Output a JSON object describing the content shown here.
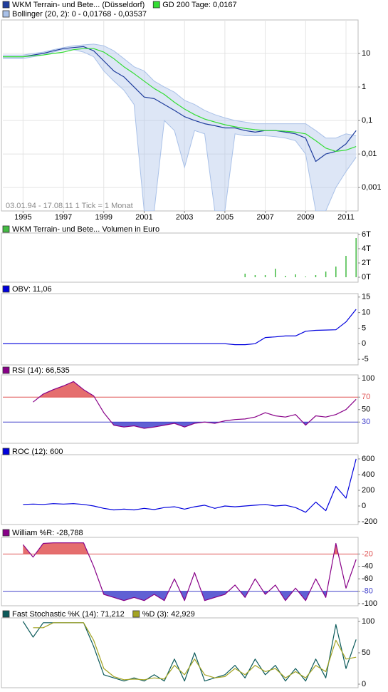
{
  "chart_data": [
    {
      "type": "line",
      "log": true,
      "grid": true,
      "annotation": "03.01.94 - 17.08.11   1 Tick = 1 Monat",
      "x": [
        1994,
        1994.5,
        1995,
        1995.5,
        1996,
        1996.5,
        1997,
        1997.5,
        1998,
        1998.5,
        1999,
        1999.5,
        2000,
        2000.5,
        2001,
        2001.5,
        2002,
        2002.5,
        2003,
        2003.5,
        2004,
        2004.5,
        2005,
        2005.5,
        2006,
        2006.5,
        2007,
        2007.5,
        2008,
        2008.5,
        2009,
        2009.5,
        2010,
        2010.5,
        2011,
        2011.5
      ],
      "xlim": [
        1994,
        2011.6
      ],
      "xticks": [
        1995,
        1997,
        1999,
        2001,
        2003,
        2005,
        2007,
        2009,
        2011
      ],
      "ylim": [
        0.0002,
        100
      ],
      "yticks": [
        10,
        1,
        {
          "value": 0.1,
          "label": "0,1"
        },
        {
          "value": 0.01,
          "label": "0,01"
        },
        {
          "value": 0.001,
          "label": "0,001"
        }
      ],
      "series": [
        {
          "name": "WKM Terrain- und Bete... (Düsseldorf)",
          "color": "#1f3d9c",
          "values": [
            8,
            8,
            8,
            9,
            10,
            12,
            14,
            15,
            16,
            12,
            6,
            3,
            2,
            1,
            0.5,
            0.45,
            0.3,
            0.2,
            0.13,
            0.1,
            0.08,
            0.07,
            0.06,
            0.06,
            0.05,
            0.045,
            0.05,
            0.05,
            0.045,
            0.04,
            0.03,
            0.006,
            0.01,
            0.012,
            0.02,
            0.05
          ]
        },
        {
          "name": "GD 200 Tage: 0,0167",
          "color": "#33dd33",
          "values": [
            8,
            8,
            8,
            8.5,
            9,
            10,
            11,
            13,
            14,
            14,
            11,
            7,
            4,
            2.5,
            1.5,
            0.9,
            0.6,
            0.35,
            0.22,
            0.15,
            0.11,
            0.09,
            0.075,
            0.065,
            0.058,
            0.053,
            0.05,
            0.05,
            0.048,
            0.045,
            0.04,
            0.025,
            0.015,
            0.012,
            0.013,
            0.0167
          ]
        }
      ],
      "band": {
        "name": "Bollinger (20, 2): 0 - 0,01768 - 0,03537",
        "color": "#a9c1e8",
        "upper": [
          9,
          9,
          9,
          10,
          11,
          13,
          15,
          17,
          18,
          19,
          17,
          12,
          7,
          4,
          3,
          1.5,
          1,
          0.7,
          0.4,
          0.3,
          0.2,
          0.15,
          0.12,
          0.1,
          0.09,
          0.08,
          0.08,
          0.08,
          0.08,
          0.08,
          0.08,
          0.05,
          0.03,
          0.03,
          0.04,
          0.035
        ],
        "lower": [
          7,
          7,
          7,
          8,
          9,
          11,
          13,
          13,
          11,
          8,
          3,
          1.5,
          0.8,
          0.3,
          0.0002,
          0.0002,
          0.1,
          0.05,
          0.004,
          0.05,
          0.04,
          0.0002,
          0.0002,
          0.04,
          0.035,
          0.035,
          0.035,
          0.033,
          0.03,
          0.025,
          0.01,
          0.0002,
          0.0002,
          0.001,
          0.003,
          0.008
        ]
      }
    },
    {
      "type": "bar",
      "x": [
        1994,
        1994.5,
        1995,
        1995.5,
        1996,
        1996.5,
        1997,
        1997.5,
        1998,
        1998.5,
        1999,
        1999.5,
        2000,
        2000.5,
        2001,
        2001.5,
        2002,
        2002.5,
        2003,
        2003.5,
        2004,
        2004.5,
        2005,
        2005.5,
        2006,
        2006.5,
        2007,
        2007.5,
        2008,
        2008.5,
        2009,
        2009.5,
        2010,
        2010.5,
        2011,
        2011.5
      ],
      "xlim": [
        1994,
        2011.6
      ],
      "ylim": [
        -700,
        6200
      ],
      "yticks": [
        {
          "value": 6000,
          "label": "6T"
        },
        {
          "value": 4000,
          "label": "4T"
        },
        {
          "value": 2000,
          "label": "2T"
        },
        {
          "value": 0,
          "label": "0T"
        }
      ],
      "series": [
        {
          "name": "WKM Terrain- und Bete... Volumen in Euro",
          "color": "#44bb44",
          "values": [
            0,
            0,
            0,
            0,
            0,
            0,
            0,
            0,
            0,
            0,
            0,
            0,
            0,
            0,
            0,
            0,
            0,
            0,
            0,
            0,
            0,
            0,
            0,
            0,
            500,
            300,
            300,
            1200,
            200,
            400,
            100,
            300,
            800,
            1500,
            3000,
            5500
          ]
        }
      ]
    },
    {
      "type": "line",
      "x": [
        1994,
        1994.5,
        1995,
        1995.5,
        1996,
        1996.5,
        1997,
        1997.5,
        1998,
        1998.5,
        1999,
        1999.5,
        2000,
        2000.5,
        2001,
        2001.5,
        2002,
        2002.5,
        2003,
        2003.5,
        2004,
        2004.5,
        2005,
        2005.5,
        2006,
        2006.5,
        2007,
        2007.5,
        2008,
        2008.5,
        2009,
        2009.5,
        2010,
        2010.5,
        2011,
        2011.5
      ],
      "xlim": [
        1994,
        2011.6
      ],
      "ylim": [
        -6.8,
        16.1
      ],
      "yticks": [
        15,
        10,
        5,
        0,
        -5
      ],
      "series": [
        {
          "name": "OBV: 11,06",
          "color": "#0000dd",
          "values": [
            0,
            0,
            0,
            0,
            0,
            0,
            0,
            0,
            0,
            0,
            0,
            0,
            0,
            0,
            0,
            0,
            0,
            0,
            0,
            0,
            0,
            0,
            0,
            -0.3,
            -0.3,
            0,
            2,
            2.2,
            2.5,
            2.5,
            4,
            4.3,
            4.4,
            4.5,
            7,
            11.06
          ]
        }
      ]
    },
    {
      "type": "line",
      "threshold_fill": true,
      "x": [
        1994,
        1994.5,
        1995,
        1995.5,
        1996,
        1996.5,
        1997,
        1997.5,
        1998,
        1998.5,
        1999,
        1999.5,
        2000,
        2000.5,
        2001,
        2001.5,
        2002,
        2002.5,
        2003,
        2003.5,
        2004,
        2004.5,
        2005,
        2005.5,
        2006,
        2006.5,
        2007,
        2007.5,
        2008,
        2008.5,
        2009,
        2009.5,
        2010,
        2010.5,
        2011,
        2011.5
      ],
      "xlim": [
        1994,
        2011.6
      ],
      "ylim": [
        -4,
        105.7
      ],
      "yticks": [
        100,
        {
          "value": 70,
          "color": "#e05555"
        },
        50,
        {
          "value": 30,
          "color": "#4444cc"
        }
      ],
      "series": [
        {
          "name": "RSI (14): 66,535",
          "color": "#880088",
          "values": [
            null,
            null,
            null,
            62,
            75,
            82,
            88,
            95,
            82,
            72,
            45,
            25,
            22,
            24,
            20,
            22,
            25,
            28,
            22,
            28,
            30,
            28,
            32,
            34,
            35,
            38,
            45,
            40,
            38,
            42,
            25,
            40,
            38,
            42,
            50,
            66.535
          ]
        }
      ]
    },
    {
      "type": "line",
      "x": [
        1994,
        1994.5,
        1995,
        1995.5,
        1996,
        1996.5,
        1997,
        1997.5,
        1998,
        1998.5,
        1999,
        1999.5,
        2000,
        2000.5,
        2001,
        2001.5,
        2002,
        2002.5,
        2003,
        2003.5,
        2004,
        2004.5,
        2005,
        2005.5,
        2006,
        2006.5,
        2007,
        2007.5,
        2008,
        2008.5,
        2009,
        2009.5,
        2010,
        2010.5,
        2011,
        2011.5
      ],
      "xlim": [
        1994,
        2011.6
      ],
      "ylim": [
        -236,
        654
      ],
      "yticks": [
        600,
        400,
        200,
        0,
        -200
      ],
      "series": [
        {
          "name": "ROC (12): 600",
          "color": "#0000dd",
          "values": [
            null,
            null,
            20,
            25,
            20,
            30,
            25,
            30,
            20,
            0,
            -30,
            -50,
            -40,
            -50,
            -30,
            -45,
            -20,
            -10,
            -40,
            -10,
            10,
            -30,
            0,
            -10,
            0,
            10,
            20,
            0,
            10,
            -20,
            -80,
            50,
            -60,
            250,
            100,
            600
          ]
        }
      ]
    },
    {
      "type": "line",
      "threshold_fill": true,
      "x": [
        1994,
        1994.5,
        1995,
        1995.5,
        1996,
        1996.5,
        1997,
        1997.5,
        1998,
        1998.5,
        1999,
        1999.5,
        2000,
        2000.5,
        2001,
        2001.5,
        2002,
        2002.5,
        2003,
        2003.5,
        2004,
        2004.5,
        2005,
        2005.5,
        2006,
        2006.5,
        2007,
        2007.5,
        2008,
        2008.5,
        2009,
        2009.5,
        2010,
        2010.5,
        2011,
        2011.5
      ],
      "xlim": [
        1994,
        2011.6
      ],
      "ylim": [
        -103.4,
        6.8
      ],
      "yticks": [
        {
          "value": -20,
          "color": "#e05555"
        },
        -40,
        -60,
        {
          "value": -80,
          "color": "#4444cc"
        },
        -100
      ],
      "series": [
        {
          "name": "William %R: -28,788",
          "color": "#880088",
          "values": [
            null,
            null,
            -5,
            -25,
            -3,
            -2,
            -2,
            -2,
            -2,
            -40,
            -85,
            -90,
            -95,
            -90,
            -95,
            -85,
            -95,
            -60,
            -95,
            -50,
            -95,
            -90,
            -85,
            -70,
            -90,
            -60,
            -85,
            -70,
            -95,
            -75,
            -95,
            -60,
            -90,
            -3,
            -75,
            -28.788
          ]
        }
      ]
    },
    {
      "type": "line",
      "x": [
        1994,
        1994.5,
        1995,
        1995.5,
        1996,
        1996.5,
        1997,
        1997.5,
        1998,
        1998.5,
        1999,
        1999.5,
        2000,
        2000.5,
        2001,
        2001.5,
        2002,
        2002.5,
        2003,
        2003.5,
        2004,
        2004.5,
        2005,
        2005.5,
        2006,
        2006.5,
        2007,
        2007.5,
        2008,
        2008.5,
        2009,
        2009.5,
        2010,
        2010.5,
        2011,
        2011.5
      ],
      "xlim": [
        1994,
        2011.6
      ],
      "ylim": [
        -5.7,
        105.7
      ],
      "yticks": [
        100,
        50,
        0
      ],
      "series": [
        {
          "name": "Fast Stochastic %K (14): 71,212",
          "color": "#0b5a5a",
          "values": [
            null,
            null,
            100,
            75,
            98,
            98,
            98,
            98,
            98,
            60,
            15,
            10,
            5,
            10,
            5,
            15,
            5,
            40,
            5,
            50,
            5,
            10,
            15,
            30,
            10,
            40,
            15,
            30,
            5,
            25,
            5,
            40,
            10,
            95,
            25,
            71.212
          ]
        },
        {
          "name": "%D (3): 42,929",
          "color": "#a3a322",
          "values": [
            null,
            null,
            null,
            90,
            90,
            98,
            98,
            98,
            98,
            70,
            25,
            12,
            7,
            8,
            7,
            10,
            8,
            30,
            15,
            40,
            15,
            10,
            12,
            25,
            15,
            30,
            20,
            25,
            10,
            20,
            10,
            30,
            20,
            70,
            40,
            42.929
          ]
        }
      ]
    }
  ]
}
